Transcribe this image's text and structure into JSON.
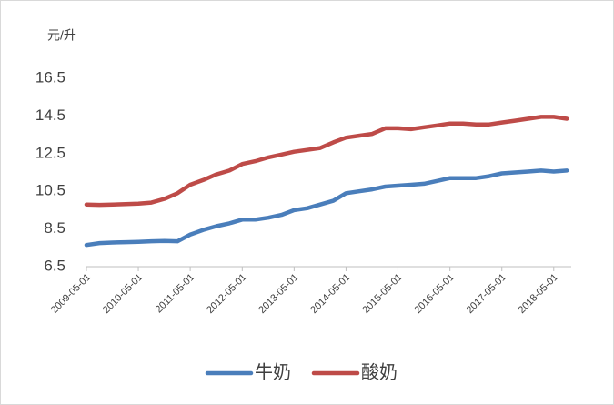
{
  "chart_data": {
    "type": "line",
    "y_label": "元/升",
    "x": [
      "2009-05-01",
      "2009-08-01",
      "2009-11-01",
      "2010-02-01",
      "2010-05-01",
      "2010-08-01",
      "2010-11-01",
      "2011-02-01",
      "2011-05-01",
      "2011-08-01",
      "2011-11-01",
      "2012-02-01",
      "2012-05-01",
      "2012-08-01",
      "2012-11-01",
      "2013-02-01",
      "2013-05-01",
      "2013-08-01",
      "2013-11-01",
      "2014-02-01",
      "2014-05-01",
      "2014-08-01",
      "2014-11-01",
      "2015-02-01",
      "2015-05-01",
      "2015-08-01",
      "2015-11-01",
      "2016-02-01",
      "2016-05-01",
      "2016-08-01",
      "2016-11-01",
      "2017-02-01",
      "2017-05-01",
      "2017-08-01",
      "2017-11-01",
      "2018-02-01",
      "2018-05-01",
      "2018-08-01"
    ],
    "series": [
      {
        "name": "牛奶",
        "color": "#4a7ebb",
        "values": [
          7.65,
          7.75,
          7.78,
          7.8,
          7.82,
          7.85,
          7.86,
          7.85,
          8.2,
          8.45,
          8.65,
          8.8,
          9.0,
          9.0,
          9.1,
          9.25,
          9.5,
          9.6,
          9.8,
          10.0,
          10.4,
          10.5,
          10.6,
          10.75,
          10.8,
          10.85,
          10.9,
          11.05,
          11.2,
          11.2,
          11.2,
          11.3,
          11.45,
          11.5,
          11.55,
          11.6,
          11.55,
          11.6
        ]
      },
      {
        "name": "酸奶",
        "color": "#be4b48",
        "values": [
          9.8,
          9.78,
          9.8,
          9.82,
          9.85,
          9.9,
          10.1,
          10.4,
          10.85,
          11.1,
          11.4,
          11.6,
          11.95,
          12.1,
          12.3,
          12.45,
          12.6,
          12.7,
          12.8,
          13.1,
          13.35,
          13.45,
          13.55,
          13.85,
          13.85,
          13.8,
          13.9,
          14.0,
          14.1,
          14.1,
          14.05,
          14.05,
          14.15,
          14.25,
          14.35,
          14.45,
          14.45,
          14.35
        ]
      }
    ],
    "xlim": [
      "2009-05-01",
      "2018-09-01"
    ],
    "xticks": [
      "2009-05-01",
      "2010-05-01",
      "2011-05-01",
      "2012-05-01",
      "2013-05-01",
      "2014-05-01",
      "2015-05-01",
      "2016-05-01",
      "2017-05-01",
      "2018-05-01"
    ],
    "ylim": [
      6.5,
      16.5
    ],
    "yticks": [
      6.5,
      8.5,
      10.5,
      12.5,
      14.5,
      16.5
    ],
    "grid": false,
    "legend": "bottom"
  }
}
